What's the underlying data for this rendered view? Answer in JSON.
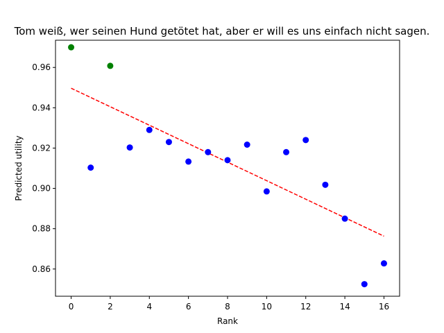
{
  "chart_data": {
    "type": "scatter",
    "title": "Tom weiß, wer seinen Hund getötet hat, aber er will es uns einfach nicht sagen.",
    "xlabel": "Rank",
    "ylabel": "Predicted utility",
    "xlim": [
      -0.8,
      16.8
    ],
    "ylim": [
      0.8465,
      0.9735
    ],
    "xticks": [
      0,
      2,
      4,
      6,
      8,
      10,
      12,
      14,
      16
    ],
    "yticks": [
      0.86,
      0.88,
      0.9,
      0.92,
      0.94,
      0.96
    ],
    "ytick_labels": [
      "0.86",
      "0.88",
      "0.90",
      "0.92",
      "0.94",
      "0.96"
    ],
    "grid": false,
    "points": [
      {
        "x": 0,
        "y": 0.97,
        "color": "#008000"
      },
      {
        "x": 1,
        "y": 0.9103,
        "color": "#0000ff"
      },
      {
        "x": 2,
        "y": 0.9608,
        "color": "#008000"
      },
      {
        "x": 3,
        "y": 0.9203,
        "color": "#0000ff"
      },
      {
        "x": 4,
        "y": 0.929,
        "color": "#0000ff"
      },
      {
        "x": 5,
        "y": 0.923,
        "color": "#0000ff"
      },
      {
        "x": 6,
        "y": 0.9133,
        "color": "#0000ff"
      },
      {
        "x": 7,
        "y": 0.918,
        "color": "#0000ff"
      },
      {
        "x": 8,
        "y": 0.914,
        "color": "#0000ff"
      },
      {
        "x": 9,
        "y": 0.9217,
        "color": "#0000ff"
      },
      {
        "x": 10,
        "y": 0.8985,
        "color": "#0000ff"
      },
      {
        "x": 11,
        "y": 0.918,
        "color": "#0000ff"
      },
      {
        "x": 12,
        "y": 0.924,
        "color": "#0000ff"
      },
      {
        "x": 13,
        "y": 0.9018,
        "color": "#0000ff"
      },
      {
        "x": 14,
        "y": 0.885,
        "color": "#0000ff"
      },
      {
        "x": 15,
        "y": 0.8525,
        "color": "#0000ff"
      },
      {
        "x": 16,
        "y": 0.8628,
        "color": "#0000ff"
      }
    ],
    "trend_line": {
      "x": [
        0,
        16
      ],
      "y": [
        0.9497,
        0.8763
      ],
      "color": "#ff0000",
      "style": "dashed"
    }
  }
}
